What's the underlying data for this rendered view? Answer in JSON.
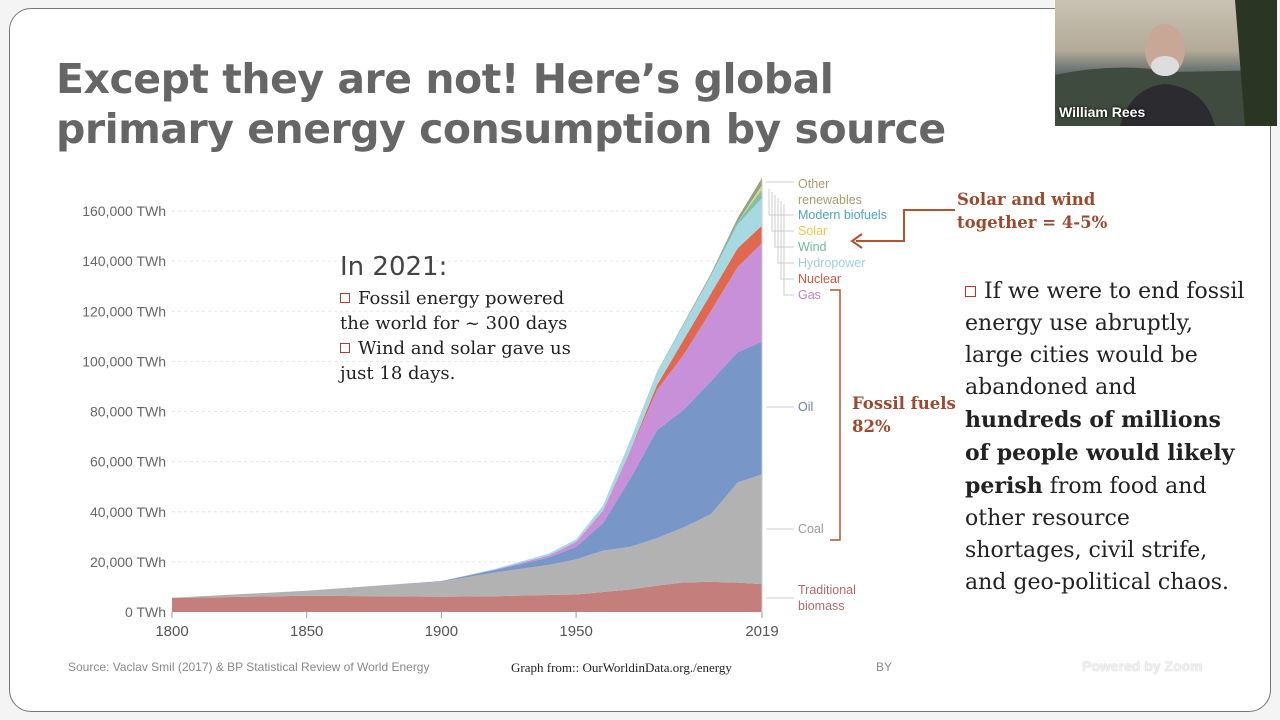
{
  "slide": {
    "title_line1": "Except they are not! Here’s global",
    "title_line2": "primary energy consumption by source",
    "note": {
      "heading": "In 2021:",
      "bullets": [
        "Fossil energy powered the world for ~ 300 days",
        "Wind and solar gave us just 18 days."
      ]
    },
    "right_text": {
      "part1": "If we were to end fossil energy use abruptly, large cities would be abandoned and ",
      "bold": "hundreds of millions of people would likely perish",
      "part2": " from food and other resource shortages, civil strife, and geo-political chaos."
    },
    "source": "Source: Vaclav Smil (2017) & BP Statistical Review of World Energy",
    "graph_from": "Graph from:: OurWorldinData.org./energy",
    "license": "BY"
  },
  "webcam": {
    "participant_name": "William Rees"
  },
  "watermark": "Powered by Zoom",
  "chart_data": {
    "type": "area",
    "stacked": true,
    "x": [
      1800,
      1850,
      1900,
      1920,
      1940,
      1950,
      1960,
      1970,
      1980,
      1990,
      2000,
      2010,
      2019
    ],
    "xticks": [
      "1800",
      "1850",
      "1900",
      "1950",
      "2019"
    ],
    "yticks": [
      "0 TWh",
      "20,000 TWh",
      "40,000 TWh",
      "60,000 TWh",
      "80,000 TWh",
      "100,000 TWh",
      "120,000 TWh",
      "140,000 TWh",
      "160,000 TWh"
    ],
    "ylim": [
      0,
      170000
    ],
    "grid": true,
    "legend": "right",
    "series": [
      {
        "name": "Traditional biomass",
        "color": "#c47f7d",
        "values": [
          5600,
          6500,
          6100,
          6300,
          6800,
          7000,
          8000,
          9000,
          10500,
          11800,
          12000,
          11700,
          11100
        ]
      },
      {
        "name": "Coal",
        "color": "#b2b2b2",
        "values": [
          100,
          2000,
          6000,
          9500,
          12000,
          14000,
          16500,
          17000,
          19000,
          22000,
          27000,
          40000,
          43800
        ]
      },
      {
        "name": "Oil",
        "color": "#7896c8",
        "values": [
          0,
          0,
          200,
          1000,
          3000,
          5000,
          11000,
          27000,
          43000,
          47000,
          53000,
          52000,
          53000
        ]
      },
      {
        "name": "Gas",
        "color": "#c890d8",
        "values": [
          0,
          0,
          70,
          200,
          800,
          2000,
          5000,
          11000,
          16000,
          22000,
          28000,
          34000,
          39300
        ]
      },
      {
        "name": "Nuclear",
        "color": "#e0684f",
        "values": [
          0,
          0,
          0,
          0,
          0,
          0,
          0,
          200,
          2000,
          6000,
          7000,
          7500,
          7000
        ]
      },
      {
        "name": "Hydropower",
        "color": "#a6d9e2",
        "values": [
          0,
          0,
          0,
          200,
          800,
          1000,
          2000,
          4000,
          5000,
          6000,
          7000,
          9500,
          11000
        ]
      },
      {
        "name": "Wind",
        "color": "#7fc0a8",
        "values": [
          0,
          0,
          0,
          0,
          0,
          0,
          0,
          0,
          0,
          10,
          80,
          900,
          3500
        ]
      },
      {
        "name": "Solar",
        "color": "#f0d05a",
        "values": [
          0,
          0,
          0,
          0,
          0,
          0,
          0,
          0,
          0,
          1,
          3,
          100,
          1800
        ]
      },
      {
        "name": "Modern biofuels",
        "color": "#4fa2c2",
        "values": [
          0,
          0,
          0,
          0,
          0,
          0,
          0,
          0,
          50,
          150,
          200,
          600,
          1100
        ]
      },
      {
        "name": "Other renewables",
        "color": "#a89b6f",
        "values": [
          0,
          0,
          0,
          0,
          0,
          0,
          0,
          50,
          150,
          400,
          600,
          1000,
          1600
        ]
      }
    ],
    "legend_labels": [
      {
        "text": "Other renewables",
        "color": "#a89b6f"
      },
      {
        "text": "Modern biofuels",
        "color": "#4fa2c2"
      },
      {
        "text": "Solar",
        "color": "#e8c84a"
      },
      {
        "text": "Wind",
        "color": "#6fb8a0"
      },
      {
        "text": "Hydropower",
        "color": "#9fcfdc"
      },
      {
        "text": "Nuclear",
        "color": "#d0543f"
      },
      {
        "text": "Gas",
        "color": "#c080d0"
      },
      {
        "text": "Oil",
        "color": "#6680b0"
      },
      {
        "text": "Coal",
        "color": "#999999"
      },
      {
        "text": "Traditional biomass",
        "color": "#b06868"
      }
    ],
    "annotations": {
      "solar_wind": "Solar and wind together = 4-5%",
      "fossil": "Fossil fuels 82%"
    }
  }
}
